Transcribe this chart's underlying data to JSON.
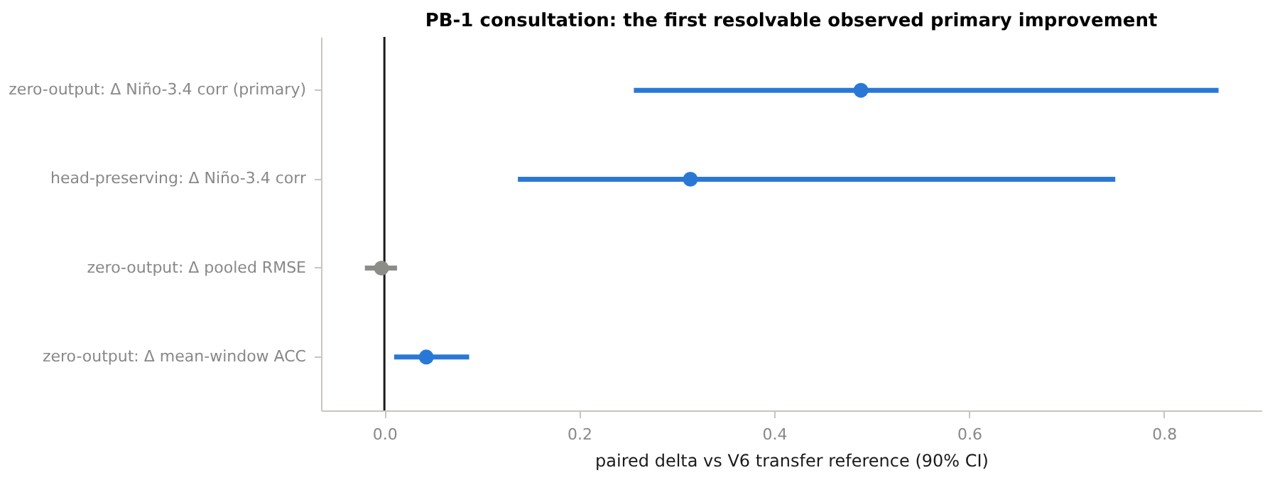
{
  "chart_data": {
    "type": "scatter",
    "orientation": "horizontal",
    "title": "PB-1 consultation: the first resolvable observed primary improvement",
    "xlabel": "paired delta vs V6 transfer reference (90% CI)",
    "categories": [
      "zero-output: Δ Niño-3.4 corr (primary)",
      "head-preserving: Δ Niño-3.4 corr",
      "zero-output: Δ pooled RMSE",
      "zero-output: Δ mean-window ACC"
    ],
    "values": [
      0.489,
      0.314,
      -0.003,
      0.043
    ],
    "errors": [
      [
        0.256,
        0.856
      ],
      [
        0.137,
        0.75
      ],
      [
        -0.02,
        0.013
      ],
      [
        0.01,
        0.087
      ]
    ],
    "colors": [
      "#2a78d6",
      "#2a78d6",
      "#8c8c88",
      "#2a78d6"
    ],
    "xlim": [
      -0.065,
      0.9
    ],
    "xticks": [
      {
        "value": 0,
        "label": "0.0"
      },
      0.2,
      0.4,
      0.6,
      0.8
    ],
    "ref_lines": [
      {
        "axis": "x",
        "value": 0,
        "color": "#1a1a1a"
      }
    ],
    "marker": "circle",
    "grid": false
  }
}
